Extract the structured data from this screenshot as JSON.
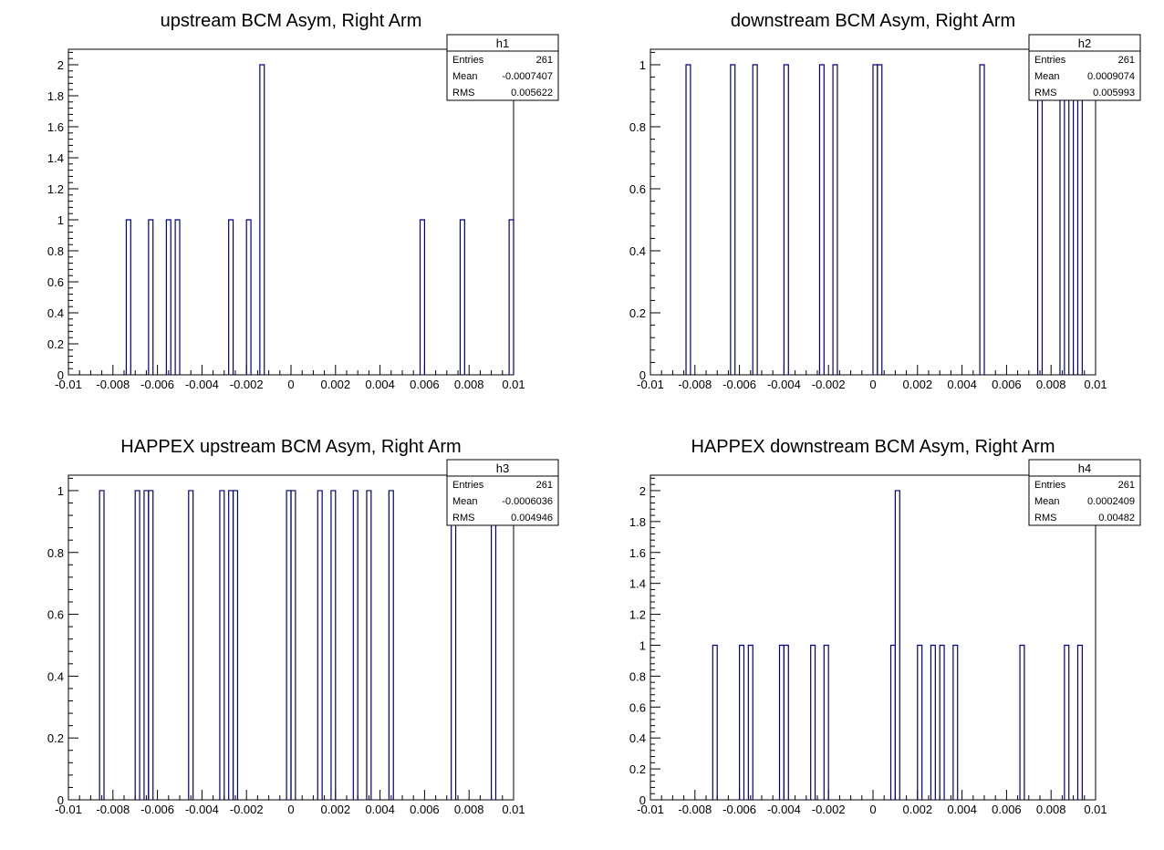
{
  "chart_data": [
    {
      "type": "bar",
      "title": "upstream BCM Asym, Right Arm",
      "xlim": [
        -0.01,
        0.01
      ],
      "ylim": [
        0,
        2.1
      ],
      "bin_width": 0.0002,
      "x_ticks": [
        "-0.01",
        "-0.008",
        "-0.006",
        "-0.004",
        "-0.002",
        "0",
        "0.002",
        "0.004",
        "0.006",
        "0.008",
        "0.01"
      ],
      "y_ticks": [
        "0",
        "0.2",
        "0.4",
        "0.6",
        "0.8",
        "1",
        "1.2",
        "1.4",
        "1.6",
        "1.8",
        "2"
      ],
      "bins": [
        {
          "x": -0.0074,
          "y": 1
        },
        {
          "x": -0.0064,
          "y": 1
        },
        {
          "x": -0.0056,
          "y": 1
        },
        {
          "x": -0.0052,
          "y": 1
        },
        {
          "x": -0.0028,
          "y": 1
        },
        {
          "x": -0.002,
          "y": 1
        },
        {
          "x": -0.0014,
          "y": 2
        },
        {
          "x": 0.0058,
          "y": 1
        },
        {
          "x": 0.0076,
          "y": 1
        },
        {
          "x": 0.0098,
          "y": 1
        }
      ],
      "stats": {
        "name": "h1",
        "rows": [
          {
            "label": "Entries",
            "value": "261"
          },
          {
            "label": "Mean",
            "value": "-0.0007407"
          },
          {
            "label": "RMS",
            "value": "0.005622"
          }
        ]
      }
    },
    {
      "type": "bar",
      "title": "downstream BCM Asym, Right Arm",
      "xlim": [
        -0.01,
        0.01
      ],
      "ylim": [
        0,
        1.05
      ],
      "bin_width": 0.0002,
      "x_ticks": [
        "-0.01",
        "-0.008",
        "-0.006",
        "-0.004",
        "-0.002",
        "0",
        "0.002",
        "0.004",
        "0.006",
        "0.008",
        "0.01"
      ],
      "y_ticks": [
        "0",
        "0.2",
        "0.4",
        "0.6",
        "0.8",
        "1"
      ],
      "bins": [
        {
          "x": -0.0084,
          "y": 1
        },
        {
          "x": -0.0064,
          "y": 1
        },
        {
          "x": -0.0054,
          "y": 1
        },
        {
          "x": -0.004,
          "y": 1
        },
        {
          "x": -0.0024,
          "y": 1
        },
        {
          "x": -0.0018,
          "y": 1
        },
        {
          "x": 0.0,
          "y": 1
        },
        {
          "x": 0.0002,
          "y": 1
        },
        {
          "x": 0.0048,
          "y": 1
        },
        {
          "x": 0.0074,
          "y": 1
        },
        {
          "x": 0.0084,
          "y": 1
        },
        {
          "x": 0.0088,
          "y": 1
        },
        {
          "x": 0.0092,
          "y": 1
        }
      ],
      "stats": {
        "name": "h2",
        "rows": [
          {
            "label": "Entries",
            "value": "261"
          },
          {
            "label": "Mean",
            "value": "0.0009074"
          },
          {
            "label": "RMS",
            "value": "0.005993"
          }
        ]
      }
    },
    {
      "type": "bar",
      "title": "HAPPEX upstream BCM Asym, Right Arm",
      "xlim": [
        -0.01,
        0.01
      ],
      "ylim": [
        0,
        1.05
      ],
      "bin_width": 0.0002,
      "x_ticks": [
        "-0.01",
        "-0.008",
        "-0.006",
        "-0.004",
        "-0.002",
        "0",
        "0.002",
        "0.004",
        "0.006",
        "0.008",
        "0.01"
      ],
      "y_ticks": [
        "0",
        "0.2",
        "0.4",
        "0.6",
        "0.8",
        "1"
      ],
      "bins": [
        {
          "x": -0.0086,
          "y": 1
        },
        {
          "x": -0.007,
          "y": 1
        },
        {
          "x": -0.0066,
          "y": 1
        },
        {
          "x": -0.0064,
          "y": 1
        },
        {
          "x": -0.0046,
          "y": 1
        },
        {
          "x": -0.0032,
          "y": 1
        },
        {
          "x": -0.0028,
          "y": 1
        },
        {
          "x": -0.0026,
          "y": 1
        },
        {
          "x": -0.0002,
          "y": 1
        },
        {
          "x": 0.0,
          "y": 1
        },
        {
          "x": 0.0012,
          "y": 1
        },
        {
          "x": 0.0018,
          "y": 1
        },
        {
          "x": 0.0028,
          "y": 1
        },
        {
          "x": 0.0034,
          "y": 1
        },
        {
          "x": 0.0044,
          "y": 1
        },
        {
          "x": 0.0072,
          "y": 1
        },
        {
          "x": 0.009,
          "y": 1
        }
      ],
      "stats": {
        "name": "h3",
        "rows": [
          {
            "label": "Entries",
            "value": "261"
          },
          {
            "label": "Mean",
            "value": "-0.0006036"
          },
          {
            "label": "RMS",
            "value": "0.004946"
          }
        ]
      }
    },
    {
      "type": "bar",
      "title": "HAPPEX downstream BCM Asym, Right Arm",
      "xlim": [
        -0.01,
        0.01
      ],
      "ylim": [
        0,
        2.1
      ],
      "bin_width": 0.0002,
      "x_ticks": [
        "-0.01",
        "-0.008",
        "-0.006",
        "-0.004",
        "-0.002",
        "0",
        "0.002",
        "0.004",
        "0.006",
        "0.008",
        "0.01"
      ],
      "y_ticks": [
        "0",
        "0.2",
        "0.4",
        "0.6",
        "0.8",
        "1",
        "1.2",
        "1.4",
        "1.6",
        "1.8",
        "2"
      ],
      "bins": [
        {
          "x": -0.0072,
          "y": 1
        },
        {
          "x": -0.006,
          "y": 1
        },
        {
          "x": -0.0056,
          "y": 1
        },
        {
          "x": -0.0042,
          "y": 1
        },
        {
          "x": -0.004,
          "y": 1
        },
        {
          "x": -0.0028,
          "y": 1
        },
        {
          "x": -0.0022,
          "y": 1
        },
        {
          "x": 0.0008,
          "y": 1
        },
        {
          "x": 0.001,
          "y": 2
        },
        {
          "x": 0.002,
          "y": 1
        },
        {
          "x": 0.0026,
          "y": 1
        },
        {
          "x": 0.003,
          "y": 1
        },
        {
          "x": 0.0036,
          "y": 1
        },
        {
          "x": 0.0066,
          "y": 1
        },
        {
          "x": 0.0086,
          "y": 1
        },
        {
          "x": 0.0092,
          "y": 1
        }
      ],
      "stats": {
        "name": "h4",
        "rows": [
          {
            "label": "Entries",
            "value": "261"
          },
          {
            "label": "Mean",
            "value": "0.0002409"
          },
          {
            "label": "RMS",
            "value": "0.00482"
          }
        ]
      }
    }
  ],
  "colors": {
    "histogram_line": "#00007f",
    "axis": "#000000",
    "background": "#ffffff"
  }
}
